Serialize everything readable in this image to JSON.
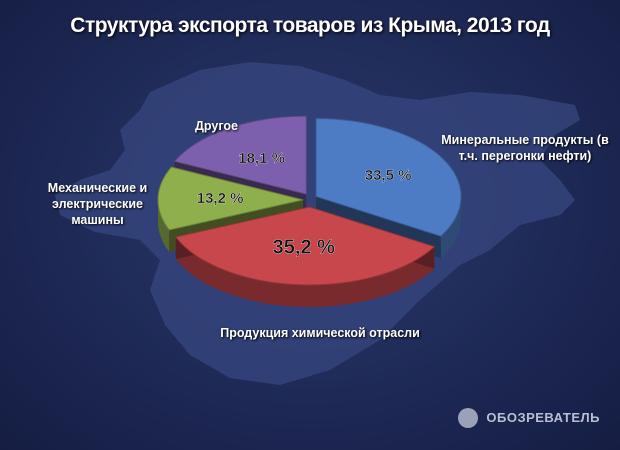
{
  "chart_data": {
    "type": "pie3d",
    "title": "Структура экспорта товаров из Крыма, 2013 год",
    "categories": [
      "Минеральные продукты (в т.ч. перегонки нефти)",
      "Продукция химической отрасли",
      "Механические и электрические машины",
      "Другое"
    ],
    "values": [
      33.5,
      35.2,
      13.2,
      18.1
    ],
    "value_labels": [
      "33,5 %",
      "35,2 %",
      "13,2 %",
      "18,1 %"
    ],
    "colors": [
      "#4d7cc4",
      "#c8474c",
      "#8fae4c",
      "#7d60ad"
    ]
  },
  "watermark": "ОБОЗРЕВАТЕЛЬ"
}
